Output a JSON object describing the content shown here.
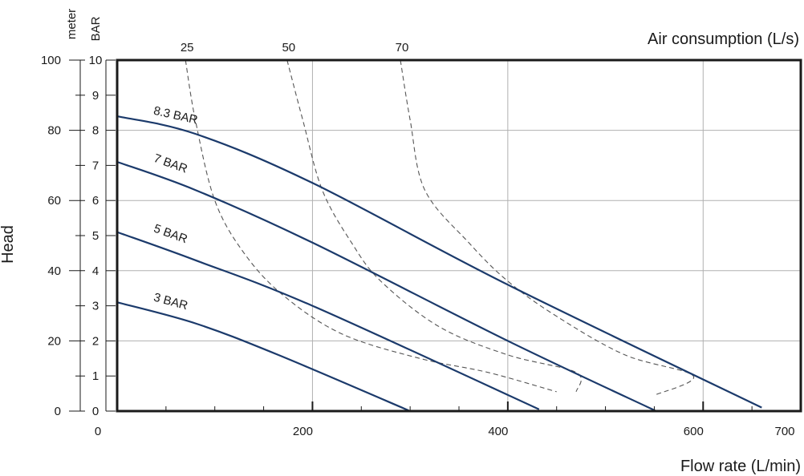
{
  "chart_data": {
    "type": "line",
    "title": "",
    "xlabel": "Flow rate (L/min)",
    "ylabel": "Head",
    "top_axis_label": "Air consumption (L/s)",
    "left_units": [
      "meter",
      "BAR"
    ],
    "xlim": [
      0,
      700
    ],
    "x_ticks": [
      "0",
      "200",
      "400",
      "600",
      "700"
    ],
    "x_tick_values": [
      0,
      200,
      400,
      600,
      700
    ],
    "ylim_bar": [
      0,
      10
    ],
    "bar_ticks": [
      "0",
      "1",
      "2",
      "3",
      "4",
      "5",
      "6",
      "7",
      "8",
      "9",
      "10"
    ],
    "meter_ticks": [
      "0",
      "20",
      "40",
      "60",
      "80",
      "100"
    ],
    "meter_per_bar": 10,
    "grid": true,
    "series": [
      {
        "name": "8.3 BAR",
        "style": "solid",
        "color": "#1b3a6b",
        "points": [
          [
            0,
            8.4
          ],
          [
            80,
            7.9
          ],
          [
            200,
            6.5
          ],
          [
            400,
            3.6
          ],
          [
            660,
            0.1
          ]
        ]
      },
      {
        "name": "7 BAR",
        "style": "solid",
        "color": "#1b3a6b",
        "points": [
          [
            0,
            7.1
          ],
          [
            80,
            6.3
          ],
          [
            200,
            4.8
          ],
          [
            400,
            2.0
          ],
          [
            552,
            0.0
          ]
        ]
      },
      {
        "name": "5 BAR",
        "style": "solid",
        "color": "#1b3a6b",
        "points": [
          [
            0,
            5.1
          ],
          [
            80,
            4.3
          ],
          [
            200,
            3.0
          ],
          [
            432,
            0.05
          ]
        ]
      },
      {
        "name": "3 BAR",
        "style": "solid",
        "color": "#1b3a6b",
        "points": [
          [
            0,
            3.1
          ],
          [
            80,
            2.5
          ],
          [
            165,
            1.6
          ],
          [
            300,
            0.0
          ]
        ]
      }
    ],
    "air_consumption_curves": [
      {
        "name": "25",
        "style": "dashed",
        "color": "#555555",
        "points": [
          [
            70,
            10.0
          ],
          [
            80,
            8.3
          ],
          [
            100,
            6.0
          ],
          [
            130,
            4.5
          ],
          [
            170,
            3.3
          ],
          [
            230,
            2.2
          ],
          [
            310,
            1.5
          ],
          [
            380,
            1.1
          ],
          [
            450,
            0.55
          ]
        ]
      },
      {
        "name": "50",
        "style": "dashed",
        "color": "#555555",
        "points": [
          [
            174,
            10.0
          ],
          [
            190,
            8.3
          ],
          [
            210,
            6.3
          ],
          [
            240,
            4.8
          ],
          [
            270,
            3.7
          ],
          [
            330,
            2.4
          ],
          [
            400,
            1.6
          ],
          [
            470,
            1.1
          ],
          [
            470,
            0.55
          ]
        ]
      },
      {
        "name": "70",
        "style": "dashed",
        "color": "#555555",
        "points": [
          [
            290,
            10.0
          ],
          [
            300,
            8.3
          ],
          [
            315,
            6.3
          ],
          [
            360,
            4.8
          ],
          [
            400,
            3.7
          ],
          [
            450,
            2.7
          ],
          [
            520,
            1.6
          ],
          [
            590,
            1.0
          ],
          [
            550,
            0.45
          ]
        ]
      }
    ]
  }
}
